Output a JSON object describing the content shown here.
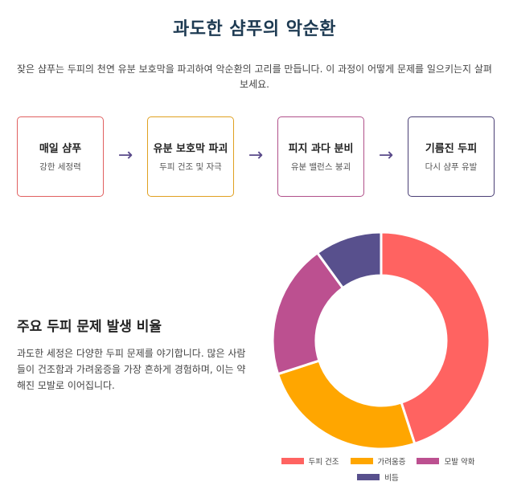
{
  "title": "과도한 샴푸의 악순환",
  "intro": "잦은 샴푸는 두피의 천연 유분 보호막을 파괴하여 악순환의 고리를 만듭니다. 이 과정이 어떻게 문제를 일으키는지 살펴보세요.",
  "cycle": [
    {
      "title": "매일 샴푸",
      "sub": "강한 세정력",
      "color": "#e06060"
    },
    {
      "title": "유분 보호막 파괴",
      "sub": "두피 건조 및 자극",
      "color": "#e0a020"
    },
    {
      "title": "피지 과다 분비",
      "sub": "유분 밸런스 붕괴",
      "color": "#b0508a"
    },
    {
      "title": "기름진 두피",
      "sub": "다시 샴푸 유발",
      "color": "#4a3f75"
    }
  ],
  "arrow_glyph": "→",
  "section": {
    "title": "주요 두피 문제 발생 비율",
    "desc": "과도한 세정은 다양한 두피 문제를 야기합니다. 많은 사람들이 건조함과 가려움증을 가장 흔하게 경험하며, 이는 약해진 모발로 이어집니다."
  },
  "chart_data": {
    "type": "pie",
    "donut": true,
    "categories": [
      "두피 건조",
      "가려움증",
      "모발 약화",
      "비듬"
    ],
    "values": [
      45,
      25,
      20,
      10
    ],
    "colors": [
      "#ff6361",
      "#ffa600",
      "#bc5090",
      "#58508d"
    ],
    "legend_position": "bottom"
  }
}
